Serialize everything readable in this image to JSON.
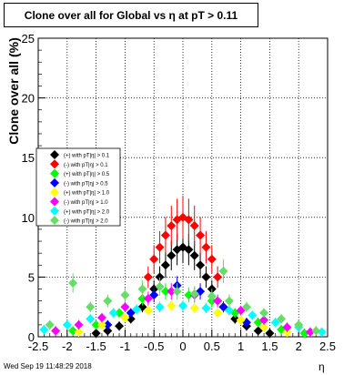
{
  "title": "Clone  over all for Global vs    η at pT > 0.11",
  "timestamp": "Wed Sep 19 11:48:29 2018",
  "chart_data": {
    "type": "scatter",
    "title": "Clone  over all for Global vs    η at pT > 0.11",
    "xlabel": "η",
    "ylabel": "Clone  over all (%)",
    "xlim": [
      -2.5,
      2.5
    ],
    "ylim": [
      0,
      25
    ],
    "grid": true,
    "legend_placement": "left-middle",
    "x_ticks": [
      "-2.5",
      "-2",
      "-1.5",
      "-1",
      "-0.5",
      "0",
      "0.5",
      "1",
      "1.5",
      "2",
      "2.5"
    ],
    "y_ticks": [
      "0",
      "5",
      "10",
      "15",
      "20",
      "25"
    ],
    "series": [
      {
        "name": "(+) with pT|η| > 0.1",
        "color": "#000000",
        "x": [
          -1.5,
          -1.3,
          -1.1,
          -0.9,
          -0.7,
          -0.5,
          -0.4,
          -0.3,
          -0.2,
          -0.1,
          0.0,
          0.1,
          0.2,
          0.3,
          0.4,
          0.5,
          0.7,
          0.9,
          1.1,
          1.3,
          1.5
        ],
        "y": [
          0.3,
          0.5,
          0.9,
          1.5,
          2.5,
          4.0,
          5.0,
          6.0,
          6.8,
          7.3,
          7.5,
          7.3,
          6.8,
          6.0,
          5.0,
          4.0,
          2.5,
          1.5,
          0.9,
          0.5,
          0.3
        ]
      },
      {
        "name": "(-) with pT|η| > 0.1",
        "color": "#ff0000",
        "x": [
          -0.6,
          -0.5,
          -0.4,
          -0.3,
          -0.2,
          -0.1,
          0.0,
          0.1,
          0.2,
          0.3,
          0.4,
          0.5,
          0.6
        ],
        "y": [
          5.0,
          6.5,
          7.5,
          8.5,
          9.3,
          9.8,
          10.0,
          9.8,
          9.3,
          8.5,
          7.5,
          6.5,
          5.0
        ]
      },
      {
        "name": "(+) with pT|η| > 0.5",
        "color": "#00ff00",
        "x": [
          -1.9,
          -1.5,
          -1.1,
          -0.7,
          -0.3,
          0.1,
          0.5,
          0.9,
          1.3,
          1.7,
          2.1
        ],
        "y": [
          0.5,
          1.0,
          2.0,
          3.2,
          3.8,
          3.5,
          3.0,
          2.0,
          1.2,
          0.6,
          0.3
        ]
      },
      {
        "name": "(-) with pT|η| > 0.5",
        "color": "#0000ff",
        "x": [
          -1.3,
          -0.9,
          -0.5,
          -0.1,
          0.3,
          0.7,
          1.1
        ],
        "y": [
          1.0,
          2.0,
          3.5,
          4.3,
          3.8,
          2.5,
          1.2
        ]
      },
      {
        "name": "(+) with pT|η| > 1.0",
        "color": "#ffff00",
        "x": [
          -1.8,
          -1.4,
          -1.0,
          -0.6,
          -0.2,
          0.2,
          0.6,
          1.0,
          1.4,
          1.8
        ],
        "y": [
          0.4,
          1.0,
          1.6,
          2.2,
          2.6,
          2.4,
          2.0,
          1.4,
          0.8,
          0.4
        ]
      },
      {
        "name": "(-) with pT|η| > 1.0",
        "color": "#ff00ff",
        "x": [
          -2.2,
          -1.8,
          -1.4,
          -1.0,
          -0.6,
          -0.2,
          0.2,
          0.6,
          1.0,
          1.4,
          1.8,
          2.2
        ],
        "y": [
          0.5,
          1.0,
          1.6,
          2.5,
          3.2,
          3.8,
          3.5,
          3.0,
          2.2,
          1.4,
          0.8,
          0.4
        ]
      },
      {
        "name": "(+) with pT|η| > 2.0",
        "color": "#00ffff",
        "x": [
          -2.4,
          -2.0,
          -1.6,
          -1.2,
          -0.8,
          -0.4,
          0.0,
          0.4,
          0.8,
          1.2,
          1.6,
          2.0,
          2.4
        ],
        "y": [
          0.6,
          1.0,
          1.5,
          2.0,
          2.3,
          2.5,
          2.6,
          2.4,
          2.2,
          1.8,
          1.2,
          0.8,
          0.4
        ]
      },
      {
        "name": "(-) with pT|η| > 2.0",
        "color": "#66dd66",
        "x": [
          -2.3,
          -1.9,
          -1.6,
          -1.3,
          -1.0,
          -0.7,
          -0.4,
          -0.1,
          0.2,
          0.5,
          0.7,
          0.8,
          1.1,
          1.4,
          1.7,
          2.0,
          2.3
        ],
        "y": [
          1.0,
          4.5,
          2.5,
          3.0,
          3.5,
          4.0,
          4.2,
          3.8,
          3.6,
          3.4,
          5.5,
          3.0,
          2.5,
          2.0,
          1.5,
          1.0,
          0.5
        ]
      }
    ]
  }
}
